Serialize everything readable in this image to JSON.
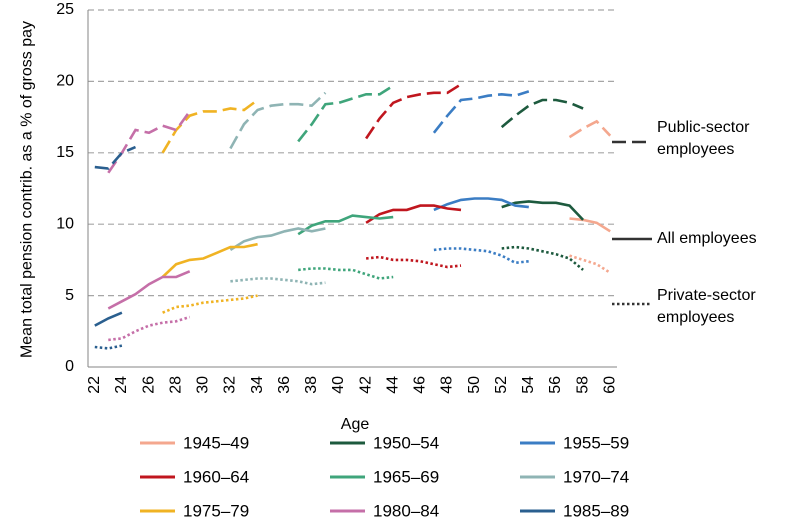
{
  "chart_data": {
    "type": "line",
    "y_label": "Mean total pension contrib. as a % of gross pay",
    "x_label": "Age",
    "categories": [
      22,
      null,
      24,
      null,
      26,
      null,
      28,
      null,
      30,
      null,
      32,
      null,
      34,
      null,
      36,
      null,
      38,
      null,
      40,
      null,
      42,
      null,
      44,
      null,
      46,
      null,
      48,
      null,
      50,
      null,
      52,
      null,
      54,
      null,
      56,
      null,
      58,
      null,
      60
    ],
    "ylim": [
      0,
      25
    ],
    "yticks": [
      0,
      5,
      10,
      15,
      20,
      25
    ],
    "grid": true,
    "line_styles": [
      {
        "key": "public",
        "label": "Public-sector employees",
        "dash": "dashed"
      },
      {
        "key": "values",
        "label": "All employees",
        "dash": "solid"
      },
      {
        "key": "private",
        "label": "Private-sector employees",
        "dash": "dotted"
      }
    ],
    "series": [
      {
        "name": "1945–49",
        "color": "#f4a78e",
        "public": [
          null,
          null,
          null,
          null,
          null,
          null,
          null,
          null,
          null,
          null,
          null,
          null,
          null,
          null,
          null,
          null,
          null,
          null,
          null,
          null,
          null,
          null,
          null,
          null,
          null,
          null,
          null,
          null,
          null,
          null,
          null,
          null,
          null,
          null,
          null,
          16.1,
          16.7,
          17.2,
          16.2
        ],
        "values": [
          null,
          null,
          null,
          null,
          null,
          null,
          null,
          null,
          null,
          null,
          null,
          null,
          null,
          null,
          null,
          null,
          null,
          null,
          null,
          null,
          null,
          null,
          null,
          null,
          null,
          null,
          null,
          null,
          null,
          null,
          null,
          null,
          null,
          null,
          null,
          10.4,
          10.3,
          10.1,
          9.5
        ],
        "private": [
          null,
          null,
          null,
          null,
          null,
          null,
          null,
          null,
          null,
          null,
          null,
          null,
          null,
          null,
          null,
          null,
          null,
          null,
          null,
          null,
          null,
          null,
          null,
          null,
          null,
          null,
          null,
          null,
          null,
          null,
          null,
          null,
          null,
          null,
          null,
          7.8,
          7.5,
          7.2,
          6.6
        ]
      },
      {
        "name": "1950–54",
        "color": "#1d5a3e",
        "public": [
          null,
          null,
          null,
          null,
          null,
          null,
          null,
          null,
          null,
          null,
          null,
          null,
          null,
          null,
          null,
          null,
          null,
          null,
          null,
          null,
          null,
          null,
          null,
          null,
          null,
          null,
          null,
          null,
          null,
          null,
          16.8,
          17.6,
          18.3,
          18.7,
          18.7,
          18.5,
          18.1,
          null,
          null
        ],
        "values": [
          null,
          null,
          null,
          null,
          null,
          null,
          null,
          null,
          null,
          null,
          null,
          null,
          null,
          null,
          null,
          null,
          null,
          null,
          null,
          null,
          null,
          null,
          null,
          null,
          null,
          null,
          null,
          null,
          null,
          null,
          11.2,
          11.5,
          11.6,
          11.5,
          11.5,
          11.3,
          10.3,
          null,
          null
        ],
        "private": [
          null,
          null,
          null,
          null,
          null,
          null,
          null,
          null,
          null,
          null,
          null,
          null,
          null,
          null,
          null,
          null,
          null,
          null,
          null,
          null,
          null,
          null,
          null,
          null,
          null,
          null,
          null,
          null,
          null,
          null,
          8.3,
          8.4,
          8.3,
          8.1,
          7.9,
          7.6,
          6.8,
          null,
          null
        ]
      },
      {
        "name": "1955–59",
        "color": "#3b7dc4",
        "public": [
          null,
          null,
          null,
          null,
          null,
          null,
          null,
          null,
          null,
          null,
          null,
          null,
          null,
          null,
          null,
          null,
          null,
          null,
          null,
          null,
          null,
          null,
          null,
          null,
          null,
          16.4,
          17.6,
          18.7,
          18.8,
          19.0,
          19.1,
          19.0,
          19.3,
          null,
          null,
          null,
          null,
          null,
          null
        ],
        "values": [
          null,
          null,
          null,
          null,
          null,
          null,
          null,
          null,
          null,
          null,
          null,
          null,
          null,
          null,
          null,
          null,
          null,
          null,
          null,
          null,
          null,
          null,
          null,
          null,
          null,
          11.0,
          11.4,
          11.7,
          11.8,
          11.8,
          11.7,
          11.3,
          11.2,
          null,
          null,
          null,
          null,
          null,
          null
        ],
        "private": [
          null,
          null,
          null,
          null,
          null,
          null,
          null,
          null,
          null,
          null,
          null,
          null,
          null,
          null,
          null,
          null,
          null,
          null,
          null,
          null,
          null,
          null,
          null,
          null,
          null,
          8.2,
          8.3,
          8.3,
          8.2,
          8.1,
          7.8,
          7.3,
          7.4,
          null,
          null,
          null,
          null,
          null,
          null
        ]
      },
      {
        "name": "1960–64",
        "color": "#c0161e",
        "public": [
          null,
          null,
          null,
          null,
          null,
          null,
          null,
          null,
          null,
          null,
          null,
          null,
          null,
          null,
          null,
          null,
          null,
          null,
          null,
          null,
          16.0,
          17.4,
          18.5,
          18.9,
          19.1,
          19.2,
          19.2,
          19.8,
          null,
          null,
          null,
          null,
          null,
          null,
          null,
          null,
          null,
          null,
          null
        ],
        "values": [
          null,
          null,
          null,
          null,
          null,
          null,
          null,
          null,
          null,
          null,
          null,
          null,
          null,
          null,
          null,
          null,
          null,
          null,
          null,
          null,
          10.1,
          10.7,
          11.0,
          11.0,
          11.3,
          11.3,
          11.1,
          11.0,
          null,
          null,
          null,
          null,
          null,
          null,
          null,
          null,
          null,
          null,
          null
        ],
        "private": [
          null,
          null,
          null,
          null,
          null,
          null,
          null,
          null,
          null,
          null,
          null,
          null,
          null,
          null,
          null,
          null,
          null,
          null,
          null,
          null,
          7.6,
          7.7,
          7.5,
          7.5,
          7.4,
          7.2,
          7.0,
          7.1,
          null,
          null,
          null,
          null,
          null,
          null,
          null,
          null,
          null,
          null,
          null
        ]
      },
      {
        "name": "1965–69",
        "color": "#3fa57b",
        "public": [
          null,
          null,
          null,
          null,
          null,
          null,
          null,
          null,
          null,
          null,
          null,
          null,
          null,
          null,
          null,
          15.8,
          17.0,
          18.4,
          18.5,
          18.8,
          19.1,
          19.1,
          19.7,
          null,
          null,
          null,
          null,
          null,
          null,
          null,
          null,
          null,
          null,
          null,
          null,
          null,
          null,
          null,
          null
        ],
        "values": [
          null,
          null,
          null,
          null,
          null,
          null,
          null,
          null,
          null,
          null,
          null,
          null,
          null,
          null,
          null,
          9.3,
          9.9,
          10.2,
          10.2,
          10.6,
          10.5,
          10.4,
          10.5,
          null,
          null,
          null,
          null,
          null,
          null,
          null,
          null,
          null,
          null,
          null,
          null,
          null,
          null,
          null,
          null
        ],
        "private": [
          null,
          null,
          null,
          null,
          null,
          null,
          null,
          null,
          null,
          null,
          null,
          null,
          null,
          null,
          null,
          6.8,
          6.9,
          6.9,
          6.8,
          6.8,
          6.5,
          6.2,
          6.3,
          null,
          null,
          null,
          null,
          null,
          null,
          null,
          null,
          null,
          null,
          null,
          null,
          null,
          null,
          null,
          null
        ]
      },
      {
        "name": "1970–74",
        "color": "#8fb4b4",
        "public": [
          null,
          null,
          null,
          null,
          null,
          null,
          null,
          null,
          null,
          null,
          15.3,
          17.0,
          18.0,
          18.3,
          18.4,
          18.4,
          18.3,
          19.2,
          null,
          null,
          null,
          null,
          null,
          null,
          null,
          null,
          null,
          null,
          null,
          null,
          null,
          null,
          null,
          null,
          null,
          null,
          null,
          null,
          null
        ],
        "values": [
          null,
          null,
          null,
          null,
          null,
          null,
          null,
          null,
          null,
          null,
          8.2,
          8.8,
          9.1,
          9.2,
          9.5,
          9.7,
          9.5,
          9.7,
          null,
          null,
          null,
          null,
          null,
          null,
          null,
          null,
          null,
          null,
          null,
          null,
          null,
          null,
          null,
          null,
          null,
          null,
          null,
          null,
          null
        ],
        "private": [
          null,
          null,
          null,
          null,
          null,
          null,
          null,
          null,
          null,
          null,
          6.0,
          6.1,
          6.2,
          6.2,
          6.1,
          6.0,
          5.8,
          5.9,
          null,
          null,
          null,
          null,
          null,
          null,
          null,
          null,
          null,
          null,
          null,
          null,
          null,
          null,
          null,
          null,
          null,
          null,
          null,
          null,
          null
        ]
      },
      {
        "name": "1975–79",
        "color": "#f0b323",
        "public": [
          null,
          null,
          null,
          null,
          null,
          15.0,
          16.6,
          17.6,
          17.9,
          17.9,
          18.1,
          18.0,
          18.7,
          null,
          null,
          null,
          null,
          null,
          null,
          null,
          null,
          null,
          null,
          null,
          null,
          null,
          null,
          null,
          null,
          null,
          null,
          null,
          null,
          null,
          null,
          null,
          null,
          null,
          null
        ],
        "values": [
          null,
          null,
          null,
          null,
          null,
          6.3,
          7.2,
          7.5,
          7.6,
          8.0,
          8.4,
          8.4,
          8.6,
          null,
          null,
          null,
          null,
          null,
          null,
          null,
          null,
          null,
          null,
          null,
          null,
          null,
          null,
          null,
          null,
          null,
          null,
          null,
          null,
          null,
          null,
          null,
          null,
          null,
          null
        ],
        "private": [
          null,
          null,
          null,
          null,
          null,
          3.8,
          4.2,
          4.3,
          4.5,
          4.6,
          4.7,
          4.8,
          5.0,
          null,
          null,
          null,
          null,
          null,
          null,
          null,
          null,
          null,
          null,
          null,
          null,
          null,
          null,
          null,
          null,
          null,
          null,
          null,
          null,
          null,
          null,
          null,
          null,
          null,
          null
        ]
      },
      {
        "name": "1980–84",
        "color": "#c56fa8",
        "public": [
          null,
          13.6,
          15.0,
          16.6,
          16.4,
          16.9,
          16.6,
          17.9,
          null,
          null,
          null,
          null,
          null,
          null,
          null,
          null,
          null,
          null,
          null,
          null,
          null,
          null,
          null,
          null,
          null,
          null,
          null,
          null,
          null,
          null,
          null,
          null,
          null,
          null,
          null,
          null,
          null,
          null,
          null
        ],
        "values": [
          null,
          4.1,
          4.6,
          5.1,
          5.8,
          6.3,
          6.3,
          6.7,
          null,
          null,
          null,
          null,
          null,
          null,
          null,
          null,
          null,
          null,
          null,
          null,
          null,
          null,
          null,
          null,
          null,
          null,
          null,
          null,
          null,
          null,
          null,
          null,
          null,
          null,
          null,
          null,
          null,
          null,
          null
        ],
        "private": [
          null,
          1.9,
          2.0,
          2.5,
          2.9,
          3.1,
          3.2,
          3.5,
          null,
          null,
          null,
          null,
          null,
          null,
          null,
          null,
          null,
          null,
          null,
          null,
          null,
          null,
          null,
          null,
          null,
          null,
          null,
          null,
          null,
          null,
          null,
          null,
          null,
          null,
          null,
          null,
          null,
          null,
          null
        ]
      },
      {
        "name": "1985–89",
        "color": "#2a5f8f",
        "public": [
          14.0,
          13.9,
          15.0,
          15.4,
          null,
          null,
          null,
          null,
          null,
          null,
          null,
          null,
          null,
          null,
          null,
          null,
          null,
          null,
          null,
          null,
          null,
          null,
          null,
          null,
          null,
          null,
          null,
          null,
          null,
          null,
          null,
          null,
          null,
          null,
          null,
          null,
          null,
          null,
          null
        ],
        "values": [
          2.9,
          3.4,
          3.8,
          null,
          null,
          null,
          null,
          null,
          null,
          null,
          null,
          null,
          null,
          null,
          null,
          null,
          null,
          null,
          null,
          null,
          null,
          null,
          null,
          null,
          null,
          null,
          null,
          null,
          null,
          null,
          null,
          null,
          null,
          null,
          null,
          null,
          null,
          null,
          null
        ],
        "private": [
          1.4,
          1.3,
          1.5,
          null,
          null,
          null,
          null,
          null,
          null,
          null,
          null,
          null,
          null,
          null,
          null,
          null,
          null,
          null,
          null,
          null,
          null,
          null,
          null,
          null,
          null,
          null,
          null,
          null,
          null,
          null,
          null,
          null,
          null,
          null,
          null,
          null,
          null,
          null,
          null
        ]
      }
    ]
  }
}
